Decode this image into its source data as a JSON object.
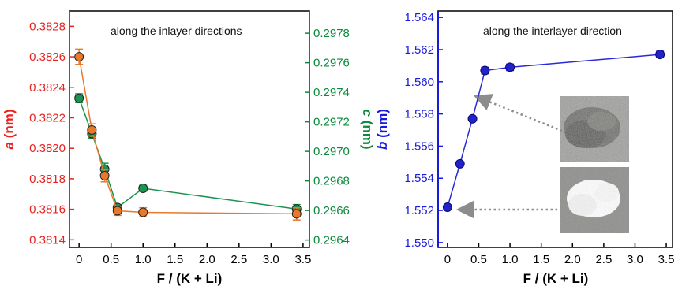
{
  "chart_data": [
    {
      "type": "scatter",
      "annotation": "along the inlayer directions",
      "xlabel": "F / (K + Li)",
      "ylabel_left_var": "a",
      "ylabel_left_unit": " (nm)",
      "ylabel_right_var": "c",
      "ylabel_right_unit": " (nm)",
      "xlim": [
        -0.15,
        3.6
      ],
      "ylim_left": [
        0.38135,
        0.3829
      ],
      "ylim_right": [
        0.29635,
        0.29795
      ],
      "x_ticks": [
        "0",
        "0.5",
        "1.0",
        "1.5",
        "2.0",
        "2.5",
        "3.0",
        "3.5"
      ],
      "x_tick_values": [
        0,
        0.5,
        1.0,
        1.5,
        2.0,
        2.5,
        3.0,
        3.5
      ],
      "y_left_ticks": [
        "0.3814",
        "0.3816",
        "0.3818",
        "0.3820",
        "0.3822",
        "0.3824",
        "0.3826",
        "0.3828"
      ],
      "y_left_tick_values": [
        0.3814,
        0.3816,
        0.3818,
        0.382,
        0.3822,
        0.3824,
        0.3826,
        0.3828
      ],
      "y_right_ticks": [
        "0.2964",
        "0.2966",
        "0.2968",
        "0.2970",
        "0.2972",
        "0.2974",
        "0.2976",
        "0.2978"
      ],
      "y_right_tick_values": [
        0.2964,
        0.2966,
        0.2968,
        0.297,
        0.2972,
        0.2974,
        0.2976,
        0.2978
      ],
      "colors": {
        "left_axis": "#e8231f",
        "right_axis": "#0a8a3c",
        "frame": "#000000"
      },
      "series": [
        {
          "axis": "left",
          "color": "#e8782a",
          "x": [
            0,
            0.2,
            0.4,
            0.6,
            1.0,
            3.4
          ],
          "y": [
            0.3826,
            0.38212,
            0.38182,
            0.38159,
            0.38158,
            0.38157
          ],
          "err": [
            5e-05,
            4e-05,
            4e-05,
            3e-05,
            3e-05,
            4e-05
          ]
        },
        {
          "axis": "right",
          "color": "#1a9450",
          "x": [
            0,
            0.2,
            0.4,
            0.6,
            1.0,
            3.4
          ],
          "y": [
            0.29736,
            0.29712,
            0.29688,
            0.29662,
            0.29675,
            0.29661
          ],
          "err": [
            3e-05,
            3e-05,
            4e-05,
            2e-05,
            2e-05,
            3e-05
          ]
        }
      ]
    },
    {
      "type": "line",
      "annotation": "along the interlayer direction",
      "xlabel": "F / (K + Li)",
      "ylabel_var": "b",
      "ylabel_unit": " (nm)",
      "xlim": [
        -0.15,
        3.6
      ],
      "ylim": [
        1.5497,
        1.5644
      ],
      "x_ticks": [
        "0",
        "0.5",
        "1.0",
        "1.5",
        "2.0",
        "2.5",
        "3.0",
        "3.5"
      ],
      "x_tick_values": [
        0,
        0.5,
        1.0,
        1.5,
        2.0,
        2.5,
        3.0,
        3.5
      ],
      "y_ticks": [
        "1.550",
        "1.552",
        "1.554",
        "1.556",
        "1.558",
        "1.560",
        "1.562",
        "1.564"
      ],
      "y_tick_values": [
        1.55,
        1.552,
        1.554,
        1.556,
        1.558,
        1.56,
        1.562,
        1.564
      ],
      "colors": {
        "axis": "#1a1adf",
        "series": "#2a2ad8"
      },
      "series": [
        {
          "x": [
            0,
            0.2,
            0.4,
            0.6,
            1.0,
            3.4
          ],
          "y": [
            1.5522,
            1.5549,
            1.5577,
            1.5607,
            1.5609,
            1.5617
          ],
          "err": [
            0.0001,
            0.0001,
            0.0001,
            0.0002,
            0.0002,
            0.0002
          ]
        }
      ],
      "insets": [
        "gray-powder-photo",
        "white-powder-photo"
      ]
    }
  ]
}
